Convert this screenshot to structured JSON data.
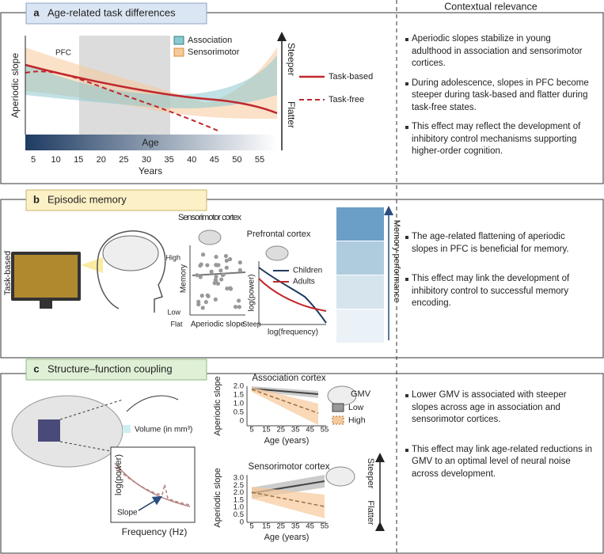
{
  "header": {
    "context_title": "Contextual relevance"
  },
  "panels": {
    "a": {
      "label": "a",
      "title": "Age-related task differences",
      "y_label": "Aperiodic slope",
      "x_label": "Years",
      "bar_label": "Age",
      "annotation": "PFC",
      "region_legend": [
        "Association",
        "Sensorimotor"
      ],
      "line_legend": [
        "Task-based",
        "Task-free"
      ],
      "arrow_labels": [
        "Steeper",
        "Flatter"
      ],
      "xticks": [
        5,
        10,
        15,
        20,
        25,
        30,
        35,
        40,
        45,
        50,
        55
      ],
      "context": [
        "Aperiodic slopes stabilize in young adulthood in association and sensorimotor cortices.",
        "During adolescence, slopes in PFC become steeper during task-based and flatter during task-free states.",
        "This effect may reflect the development of inhibitory control mechanisms supporting higher-order cognition."
      ]
    },
    "b": {
      "label": "b",
      "title": "Episodic memory",
      "side_label": "Task-based",
      "scatter": {
        "title": "Sensorimotor cortex",
        "y_label": "Memory",
        "y_high": "High",
        "y_low": "Low",
        "x_left": "Flat",
        "x_label": "Aperiodic slope",
        "x_right": "Steep"
      },
      "spectrum": {
        "title": "Prefrontal cortex",
        "legend": [
          "Children",
          "Adults"
        ],
        "y_label": "log(power)",
        "x_label": "log(frequency)"
      },
      "arrow_label": "Memory performance",
      "context": [
        "The age-related flattening of aperiodic slopes in PFC is beneficial for memory.",
        "This effect may link the development of inhibitory control to successful memory encoding."
      ]
    },
    "c": {
      "label": "c",
      "title": "Structure–function coupling",
      "volume_label": "Volume (in mm³)",
      "spectrum": {
        "y_label": "log(power)",
        "x_label": "Frequency (Hz)",
        "annotation": "Slope"
      },
      "association": {
        "title": "Association cortex",
        "y_label": "Aperiodic slope",
        "x_label": "Age (years)",
        "yticks": [
          "2.0",
          "1.5",
          "1.0",
          "0.5",
          0
        ],
        "xticks": [
          5,
          15,
          25,
          35,
          45,
          55
        ]
      },
      "sensorimotor": {
        "title": "Sensorimotor cortex",
        "y_label": "Aperiodic slope",
        "x_label": "Age (years)",
        "yticks": [
          "3.0",
          "2.5",
          "2.0",
          "1.5",
          "1.0",
          "0.5",
          0
        ],
        "xticks": [
          5,
          15,
          25,
          35,
          45,
          55
        ]
      },
      "legend_title": "GMV",
      "legend": [
        "Low",
        "High"
      ],
      "arrow_labels": [
        "Steeper",
        "Flatter"
      ],
      "context": [
        "Lower GMV is associated with steeper slopes across age in association and sensorimotor cortices.",
        "This effect may link age-related reductions in GMV to an optimal level of neural noise across development."
      ]
    }
  }
}
